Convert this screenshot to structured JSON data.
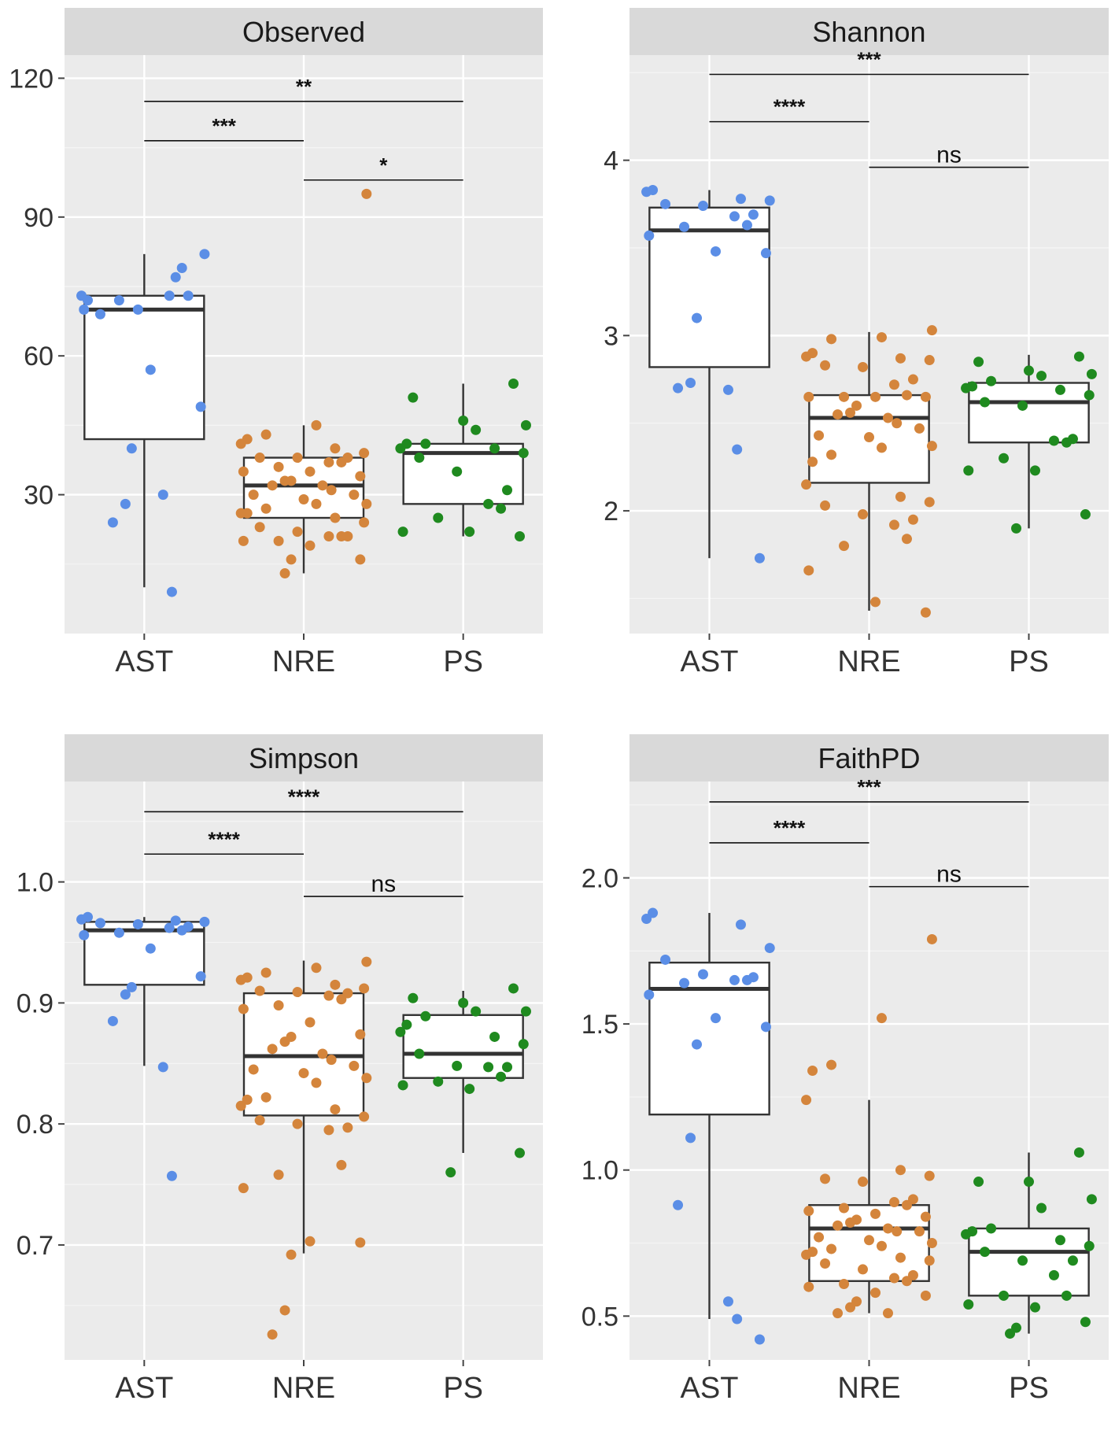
{
  "chart_data": [
    {
      "type": "box",
      "title": "Observed",
      "categories": [
        "AST",
        "NRE",
        "PS"
      ],
      "ylim": [
        0,
        125
      ],
      "yticks": [
        30,
        60,
        90,
        120
      ],
      "ytick_labels": [
        "30",
        "60",
        "90",
        "120"
      ],
      "boxes": [
        {
          "category": "AST",
          "whisker_low": 10,
          "q1": 42,
          "median": 70,
          "q3": 73,
          "whisker_high": 82
        },
        {
          "category": "NRE",
          "whisker_low": 13,
          "q1": 25,
          "median": 32,
          "q3": 38,
          "whisker_high": 45
        },
        {
          "category": "PS",
          "whisker_low": 21,
          "q1": 28,
          "median": 39,
          "q3": 41,
          "whisker_high": 54
        }
      ],
      "points": [
        {
          "group": "AST",
          "values": [
            72,
            73,
            77,
            82,
            69,
            70,
            73,
            73,
            79,
            72,
            70,
            57,
            49,
            40,
            28,
            24,
            30,
            9
          ]
        },
        {
          "group": "NRE",
          "values": [
            95,
            45,
            43,
            42,
            41,
            40,
            39,
            38,
            38,
            38,
            37,
            37,
            36,
            35,
            35,
            34,
            33,
            33,
            32,
            32,
            31,
            30,
            30,
            29,
            28,
            28,
            27,
            26,
            26,
            25,
            24,
            23,
            22,
            21,
            21,
            21,
            20,
            20,
            19,
            16,
            16,
            13
          ]
        },
        {
          "group": "PS",
          "values": [
            54,
            51,
            46,
            45,
            44,
            41,
            41,
            40,
            40,
            39,
            38,
            35,
            31,
            28,
            27,
            25,
            22,
            22,
            21
          ]
        }
      ],
      "comparisons": [
        {
          "groups": [
            "AST",
            "PS"
          ],
          "label": "**",
          "y": 115
        },
        {
          "groups": [
            "AST",
            "NRE"
          ],
          "label": "***",
          "y": 106.5
        },
        {
          "groups": [
            "NRE",
            "PS"
          ],
          "label": "*",
          "y": 98
        }
      ]
    },
    {
      "type": "box",
      "title": "Shannon",
      "categories": [
        "AST",
        "NRE",
        "PS"
      ],
      "ylim": [
        1.3,
        4.6
      ],
      "yticks": [
        2,
        3,
        4
      ],
      "ytick_labels": [
        "2",
        "3",
        "4"
      ],
      "boxes": [
        {
          "category": "AST",
          "whisker_low": 1.73,
          "q1": 2.82,
          "median": 3.6,
          "q3": 3.73,
          "whisker_high": 3.83
        },
        {
          "category": "NRE",
          "whisker_low": 1.43,
          "q1": 2.16,
          "median": 2.53,
          "q3": 2.66,
          "whisker_high": 3.02
        },
        {
          "category": "PS",
          "whisker_low": 1.9,
          "q1": 2.39,
          "median": 2.62,
          "q3": 2.73,
          "whisker_high": 2.89
        }
      ],
      "points": [
        {
          "group": "AST",
          "values": [
            3.83,
            3.82,
            3.78,
            3.77,
            3.75,
            3.74,
            3.69,
            3.68,
            3.63,
            3.62,
            3.57,
            3.48,
            3.47,
            3.1,
            2.73,
            2.7,
            2.69,
            2.35,
            1.73
          ]
        },
        {
          "group": "NRE",
          "values": [
            3.03,
            2.99,
            2.98,
            2.9,
            2.88,
            2.87,
            2.86,
            2.83,
            2.82,
            2.75,
            2.72,
            2.66,
            2.65,
            2.65,
            2.65,
            2.65,
            2.6,
            2.56,
            2.55,
            2.53,
            2.5,
            2.47,
            2.43,
            2.42,
            2.37,
            2.36,
            2.32,
            2.28,
            2.15,
            2.08,
            2.05,
            2.03,
            1.98,
            1.95,
            1.92,
            1.84,
            1.8,
            1.66,
            1.48,
            1.42
          ]
        },
        {
          "group": "PS",
          "values": [
            2.88,
            2.85,
            2.8,
            2.78,
            2.77,
            2.74,
            2.71,
            2.7,
            2.69,
            2.66,
            2.62,
            2.6,
            2.41,
            2.4,
            2.39,
            2.3,
            2.23,
            2.23,
            1.98,
            1.9
          ]
        }
      ],
      "comparisons": [
        {
          "groups": [
            "AST",
            "PS"
          ],
          "label": "***",
          "y": 4.49
        },
        {
          "groups": [
            "AST",
            "NRE"
          ],
          "label": "****",
          "y": 4.22
        },
        {
          "groups": [
            "NRE",
            "PS"
          ],
          "label": "ns",
          "y": 3.96
        }
      ]
    },
    {
      "type": "box",
      "title": "Simpson",
      "categories": [
        "AST",
        "NRE",
        "PS"
      ],
      "ylim": [
        0.605,
        1.083
      ],
      "yticks": [
        0.7,
        0.8,
        0.9,
        1.0
      ],
      "ytick_labels": [
        "0.7",
        "0.8",
        "0.9",
        "1.0"
      ],
      "boxes": [
        {
          "category": "AST",
          "whisker_low": 0.848,
          "q1": 0.915,
          "median": 0.96,
          "q3": 0.967,
          "whisker_high": 0.971
        },
        {
          "category": "NRE",
          "whisker_low": 0.693,
          "q1": 0.807,
          "median": 0.856,
          "q3": 0.908,
          "whisker_high": 0.935
        },
        {
          "category": "PS",
          "whisker_low": 0.776,
          "q1": 0.838,
          "median": 0.858,
          "q3": 0.89,
          "whisker_high": 0.91
        }
      ],
      "points": [
        {
          "group": "AST",
          "values": [
            0.971,
            0.969,
            0.968,
            0.967,
            0.966,
            0.965,
            0.963,
            0.962,
            0.96,
            0.958,
            0.956,
            0.945,
            0.922,
            0.913,
            0.907,
            0.885,
            0.847,
            0.757
          ]
        },
        {
          "group": "NRE",
          "values": [
            0.934,
            0.929,
            0.925,
            0.921,
            0.919,
            0.915,
            0.912,
            0.91,
            0.909,
            0.908,
            0.906,
            0.903,
            0.898,
            0.895,
            0.884,
            0.874,
            0.872,
            0.868,
            0.862,
            0.858,
            0.853,
            0.848,
            0.845,
            0.842,
            0.838,
            0.834,
            0.822,
            0.82,
            0.815,
            0.812,
            0.806,
            0.803,
            0.8,
            0.797,
            0.795,
            0.766,
            0.758,
            0.747,
            0.703,
            0.702,
            0.692,
            0.646,
            0.626
          ]
        },
        {
          "group": "PS",
          "values": [
            0.912,
            0.904,
            0.9,
            0.893,
            0.893,
            0.889,
            0.882,
            0.876,
            0.872,
            0.866,
            0.858,
            0.848,
            0.847,
            0.847,
            0.839,
            0.835,
            0.832,
            0.829,
            0.776,
            0.76
          ]
        }
      ],
      "comparisons": [
        {
          "groups": [
            "AST",
            "PS"
          ],
          "label": "****",
          "y": 1.058
        },
        {
          "groups": [
            "AST",
            "NRE"
          ],
          "label": "****",
          "y": 1.023
        },
        {
          "groups": [
            "NRE",
            "PS"
          ],
          "label": "ns",
          "y": 0.988
        }
      ]
    },
    {
      "type": "box",
      "title": "FaithPD",
      "categories": [
        "AST",
        "NRE",
        "PS"
      ],
      "ylim": [
        0.35,
        2.33
      ],
      "yticks": [
        0.5,
        1.0,
        1.5,
        2.0
      ],
      "ytick_labels": [
        "0.5",
        "1.0",
        "1.5",
        "2.0"
      ],
      "boxes": [
        {
          "category": "AST",
          "whisker_low": 0.49,
          "q1": 1.19,
          "median": 1.62,
          "q3": 1.71,
          "whisker_high": 1.88
        },
        {
          "category": "NRE",
          "whisker_low": 0.51,
          "q1": 0.62,
          "median": 0.8,
          "q3": 0.88,
          "whisker_high": 1.24
        },
        {
          "category": "PS",
          "whisker_low": 0.44,
          "q1": 0.57,
          "median": 0.72,
          "q3": 0.8,
          "whisker_high": 1.06
        }
      ],
      "points": [
        {
          "group": "AST",
          "values": [
            1.88,
            1.86,
            1.84,
            1.76,
            1.72,
            1.67,
            1.66,
            1.65,
            1.65,
            1.64,
            1.6,
            1.52,
            1.49,
            1.43,
            1.11,
            0.88,
            0.55,
            0.49,
            0.42
          ]
        },
        {
          "group": "NRE",
          "values": [
            1.79,
            1.52,
            1.36,
            1.34,
            1.24,
            1.0,
            0.98,
            0.97,
            0.96,
            0.9,
            0.89,
            0.88,
            0.87,
            0.86,
            0.85,
            0.84,
            0.83,
            0.82,
            0.81,
            0.8,
            0.79,
            0.79,
            0.77,
            0.76,
            0.75,
            0.74,
            0.73,
            0.72,
            0.71,
            0.7,
            0.69,
            0.68,
            0.66,
            0.64,
            0.63,
            0.62,
            0.61,
            0.6,
            0.58,
            0.57,
            0.55,
            0.53,
            0.51,
            0.51
          ]
        },
        {
          "group": "PS",
          "values": [
            1.06,
            0.96,
            0.96,
            0.9,
            0.87,
            0.8,
            0.79,
            0.78,
            0.76,
            0.74,
            0.72,
            0.69,
            0.69,
            0.64,
            0.57,
            0.57,
            0.54,
            0.53,
            0.48,
            0.46,
            0.44
          ]
        }
      ],
      "comparisons": [
        {
          "groups": [
            "AST",
            "PS"
          ],
          "label": "***",
          "y": 2.26
        },
        {
          "groups": [
            "AST",
            "NRE"
          ],
          "label": "****",
          "y": 2.12
        },
        {
          "groups": [
            "NRE",
            "PS"
          ],
          "label": "ns",
          "y": 1.97
        }
      ]
    }
  ],
  "colors": {
    "AST": "#5b8ee6",
    "NRE": "#d4853c",
    "PS": "#1f8a1f",
    "panel_background": "#ebebeb",
    "strip_background": "#d9d9d9",
    "grid_major": "#ffffff",
    "box_line": "#333333",
    "text": "#333333"
  }
}
